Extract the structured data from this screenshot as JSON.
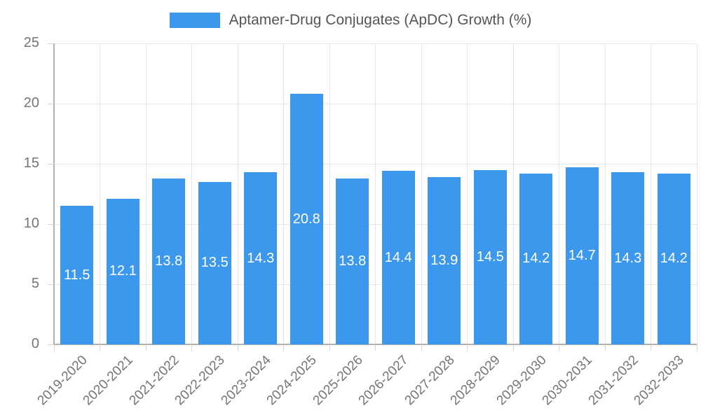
{
  "chart_data": {
    "type": "bar",
    "title": "",
    "categories": [
      "2019-2020",
      "2020-2021",
      "2021-2022",
      "2022-2023",
      "2023-2024",
      "2024-2025",
      "2025-2026",
      "2026-2027",
      "2027-2028",
      "2028-2029",
      "2029-2030",
      "2030-2031",
      "2031-2032",
      "2032-2033"
    ],
    "series": [
      {
        "name": "Aptamer-Drug Conjugates (ApDC) Growth (%)",
        "values": [
          11.5,
          12.1,
          13.8,
          13.5,
          14.3,
          20.8,
          13.8,
          14.4,
          13.9,
          14.5,
          14.2,
          14.7,
          14.3,
          14.2
        ],
        "color": "#3b98ec"
      }
    ],
    "xlabel": "",
    "ylabel": "",
    "ylim": [
      0,
      25
    ],
    "yticks": [
      0,
      5,
      10,
      15,
      20,
      25
    ],
    "grid": true,
    "legend_position": "top-center",
    "x_tick_rotation_deg": -45,
    "value_label_position": "inside-center",
    "value_label_color": "#ffffff"
  },
  "colors": {
    "background": "#ffffff",
    "bar": "#3b98ec",
    "axis_line": "#b1b1b1",
    "gridline": "#e6e6e6",
    "tick_mark": "#d4d4d4",
    "tick_text": "#757575",
    "legend_text": "#555555",
    "bar_value_text": "#ffffff"
  }
}
